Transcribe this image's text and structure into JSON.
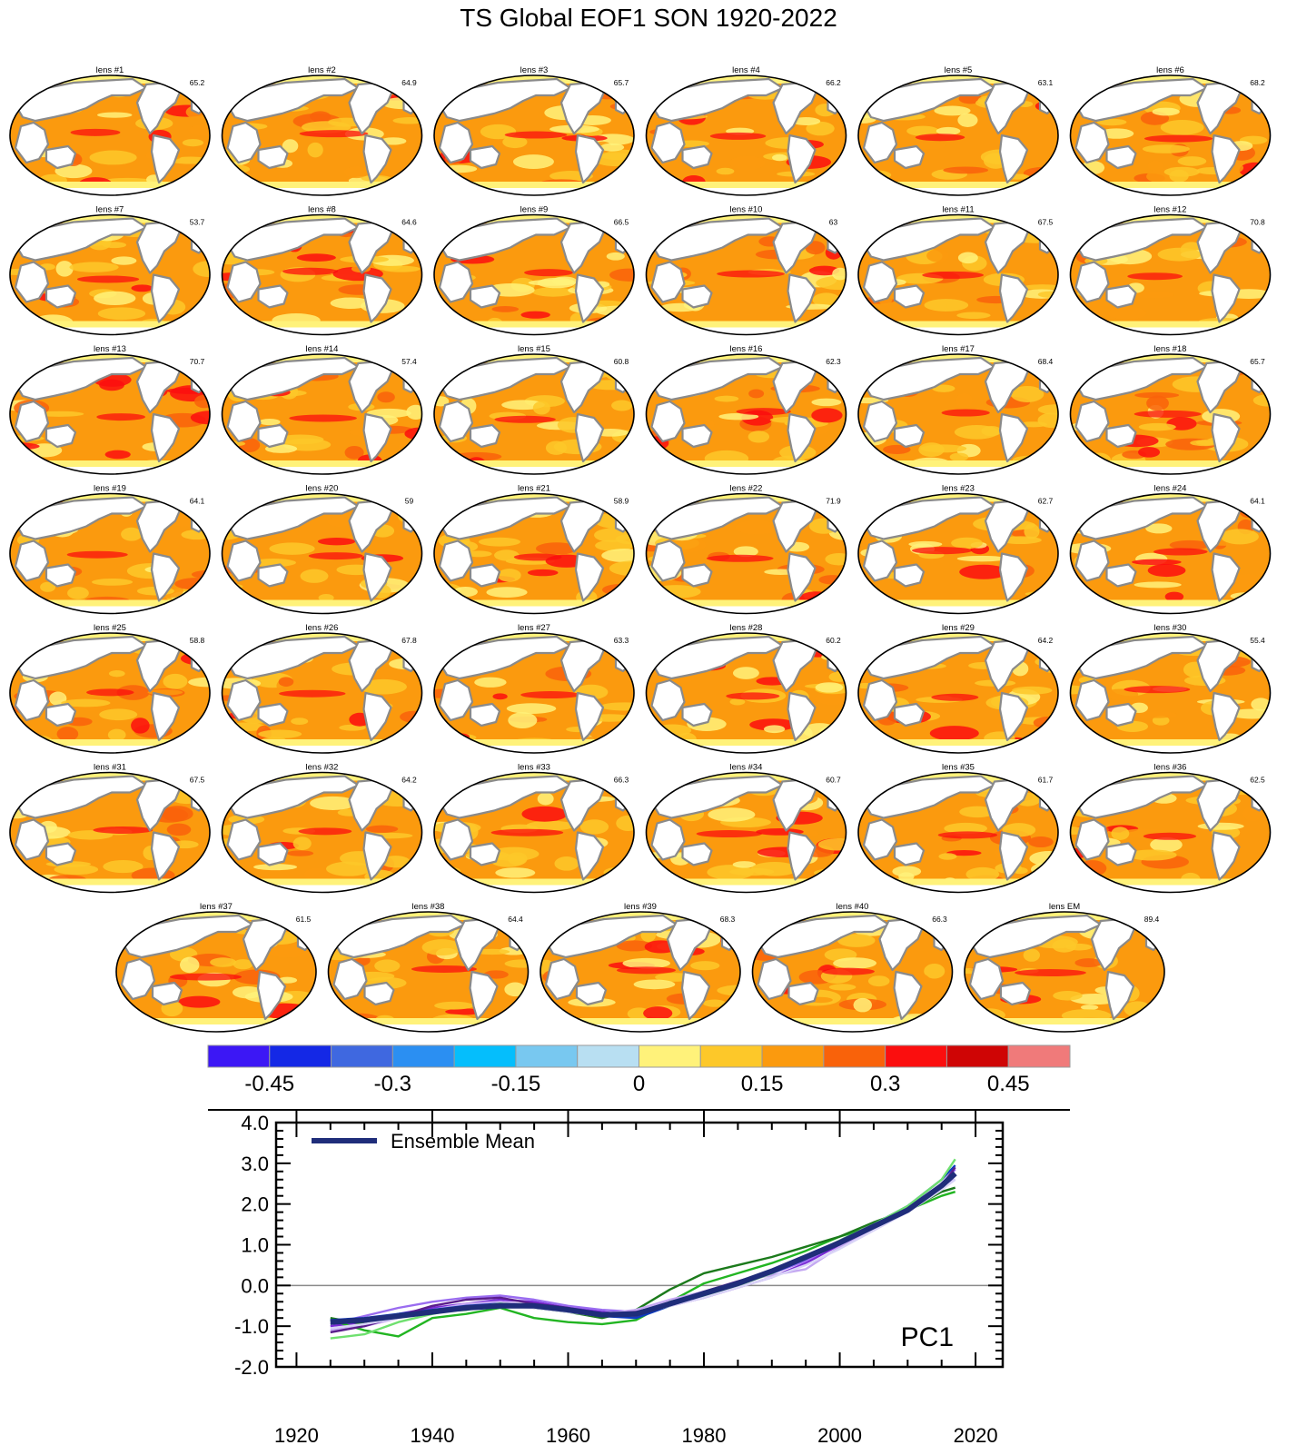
{
  "title": "TS Global EOF1 SON 1920-2022",
  "panels": [
    {
      "label": "lens #1",
      "pct": "65.2"
    },
    {
      "label": "lens #2",
      "pct": "64.9"
    },
    {
      "label": "lens #3",
      "pct": "65.7"
    },
    {
      "label": "lens #4",
      "pct": "66.2"
    },
    {
      "label": "lens #5",
      "pct": "63.1"
    },
    {
      "label": "lens #6",
      "pct": "68.2"
    },
    {
      "label": "lens #7",
      "pct": "53.7"
    },
    {
      "label": "lens #8",
      "pct": "64.6"
    },
    {
      "label": "lens #9",
      "pct": "66.5"
    },
    {
      "label": "lens #10",
      "pct": "63"
    },
    {
      "label": "lens #11",
      "pct": "67.5"
    },
    {
      "label": "lens #12",
      "pct": "70.8"
    },
    {
      "label": "lens #13",
      "pct": "70.7"
    },
    {
      "label": "lens #14",
      "pct": "57.4"
    },
    {
      "label": "lens #15",
      "pct": "60.8"
    },
    {
      "label": "lens #16",
      "pct": "62.3"
    },
    {
      "label": "lens #17",
      "pct": "68.4"
    },
    {
      "label": "lens #18",
      "pct": "65.7"
    },
    {
      "label": "lens #19",
      "pct": "64.1"
    },
    {
      "label": "lens #20",
      "pct": "59"
    },
    {
      "label": "lens #21",
      "pct": "58.9"
    },
    {
      "label": "lens #22",
      "pct": "71.9"
    },
    {
      "label": "lens #23",
      "pct": "62.7"
    },
    {
      "label": "lens #24",
      "pct": "64.1"
    },
    {
      "label": "lens #25",
      "pct": "58.8"
    },
    {
      "label": "lens #26",
      "pct": "67.8"
    },
    {
      "label": "lens #27",
      "pct": "63.3"
    },
    {
      "label": "lens #28",
      "pct": "60.2"
    },
    {
      "label": "lens #29",
      "pct": "64.2"
    },
    {
      "label": "lens #30",
      "pct": "55.4"
    },
    {
      "label": "lens #31",
      "pct": "67.5"
    },
    {
      "label": "lens #32",
      "pct": "64.2"
    },
    {
      "label": "lens #33",
      "pct": "66.3"
    },
    {
      "label": "lens #34",
      "pct": "60.7"
    },
    {
      "label": "lens #35",
      "pct": "61.7"
    },
    {
      "label": "lens #36",
      "pct": "62.5"
    },
    {
      "label": "lens #37",
      "pct": "61.5"
    },
    {
      "label": "lens #38",
      "pct": "64.4"
    },
    {
      "label": "lens #39",
      "pct": "68.3"
    },
    {
      "label": "lens #40",
      "pct": "66.3"
    },
    {
      "label": "lens EM",
      "pct": "89.4"
    }
  ],
  "colorbar": {
    "colors": [
      "#3c17f5",
      "#1428e6",
      "#3f68e0",
      "#2b8ff2",
      "#05befc",
      "#78c8f0",
      "#b8dff2",
      "#fff27a",
      "#fdc829",
      "#fb9a0e",
      "#f9620a",
      "#fb0e0e",
      "#cf0505",
      "#f07a7a"
    ],
    "tick_labels": [
      "-0.45",
      "-0.3",
      "-0.15",
      "0",
      "0.15",
      "0.3",
      "0.45"
    ],
    "label_positions": [
      1,
      3,
      5,
      7,
      9,
      11,
      13
    ]
  },
  "chart_data": {
    "type": "line",
    "title": "",
    "annotation": "PC1",
    "xlabel": "",
    "ylabel": "",
    "xlim": [
      1917,
      2024
    ],
    "ylim": [
      -2.0,
      4.0
    ],
    "x_ticks": [
      1920,
      1940,
      1960,
      1980,
      2000,
      2020
    ],
    "y_ticks": [
      "4.0",
      "3.0",
      "2.0",
      "1.0",
      "0.0",
      "-1.0",
      "-2.0"
    ],
    "zero_line": true,
    "legend": {
      "placement": "top-left",
      "entries": [
        "Ensemble Mean"
      ]
    },
    "x": [
      1925,
      1930,
      1935,
      1940,
      1945,
      1950,
      1955,
      1960,
      1965,
      1970,
      1975,
      1980,
      1985,
      1990,
      1995,
      2000,
      2005,
      2010,
      2015,
      2017
    ],
    "series": [
      {
        "name": "Ensemble Mean",
        "color": "#1f2d7a",
        "values": [
          -0.9,
          -0.85,
          -0.75,
          -0.65,
          -0.55,
          -0.5,
          -0.5,
          -0.6,
          -0.72,
          -0.7,
          -0.45,
          -0.2,
          0.05,
          0.35,
          0.7,
          1.05,
          1.45,
          1.85,
          2.45,
          2.75
        ]
      },
      {
        "color": "#7a2bd6",
        "values": [
          -1.0,
          -0.9,
          -0.7,
          -0.55,
          -0.45,
          -0.35,
          -0.4,
          -0.55,
          -0.65,
          -0.75,
          -0.5,
          -0.3,
          -0.05,
          0.2,
          0.55,
          1.0,
          1.4,
          1.8,
          2.4,
          2.7
        ]
      },
      {
        "color": "#22b522",
        "values": [
          -0.85,
          -1.1,
          -1.25,
          -0.8,
          -0.7,
          -0.55,
          -0.8,
          -0.9,
          -0.95,
          -0.85,
          -0.4,
          0.05,
          0.3,
          0.55,
          0.85,
          1.2,
          1.45,
          1.85,
          2.2,
          2.3
        ]
      },
      {
        "color": "#1b7a1b",
        "values": [
          -0.8,
          -0.95,
          -0.7,
          -0.65,
          -0.6,
          -0.45,
          -0.55,
          -0.65,
          -0.8,
          -0.6,
          -0.1,
          0.3,
          0.5,
          0.7,
          0.95,
          1.2,
          1.55,
          1.85,
          2.3,
          2.4
        ]
      },
      {
        "color": "#9a6cf0",
        "values": [
          -0.95,
          -0.75,
          -0.55,
          -0.4,
          -0.3,
          -0.25,
          -0.35,
          -0.5,
          -0.6,
          -0.65,
          -0.45,
          -0.2,
          0.0,
          0.3,
          0.6,
          1.05,
          1.4,
          1.9,
          2.5,
          2.85
        ]
      },
      {
        "color": "#c4a8f2",
        "values": [
          -1.1,
          -1.0,
          -0.8,
          -0.6,
          -0.45,
          -0.4,
          -0.5,
          -0.6,
          -0.7,
          -0.6,
          -0.35,
          -0.15,
          0.1,
          0.25,
          0.4,
          0.95,
          1.4,
          1.85,
          2.5,
          2.6
        ]
      },
      {
        "color": "#0e3bbf",
        "values": [
          -0.85,
          -0.8,
          -0.7,
          -0.6,
          -0.5,
          -0.45,
          -0.5,
          -0.6,
          -0.75,
          -0.8,
          -0.5,
          -0.25,
          0.05,
          0.3,
          0.65,
          1.1,
          1.5,
          1.95,
          2.6,
          2.95
        ]
      },
      {
        "color": "#5a1e8c",
        "values": [
          -1.15,
          -1.0,
          -0.75,
          -0.5,
          -0.35,
          -0.3,
          -0.45,
          -0.55,
          -0.7,
          -0.65,
          -0.45,
          -0.15,
          0.1,
          0.35,
          0.7,
          1.1,
          1.5,
          1.9,
          2.45,
          2.9
        ]
      },
      {
        "color": "#6fe06f",
        "values": [
          -1.3,
          -1.2,
          -0.9,
          -0.7,
          -0.55,
          -0.45,
          -0.5,
          -0.6,
          -0.7,
          -0.7,
          -0.5,
          -0.25,
          0.0,
          0.3,
          0.7,
          1.1,
          1.5,
          1.95,
          2.6,
          3.1
        ]
      },
      {
        "color": "#d9d4f7",
        "values": [
          -1.05,
          -0.95,
          -0.8,
          -0.65,
          -0.55,
          -0.5,
          -0.55,
          -0.65,
          -0.75,
          -0.7,
          -0.5,
          -0.3,
          -0.05,
          0.2,
          0.5,
          0.9,
          1.35,
          1.8,
          2.35,
          2.6
        ]
      }
    ]
  }
}
